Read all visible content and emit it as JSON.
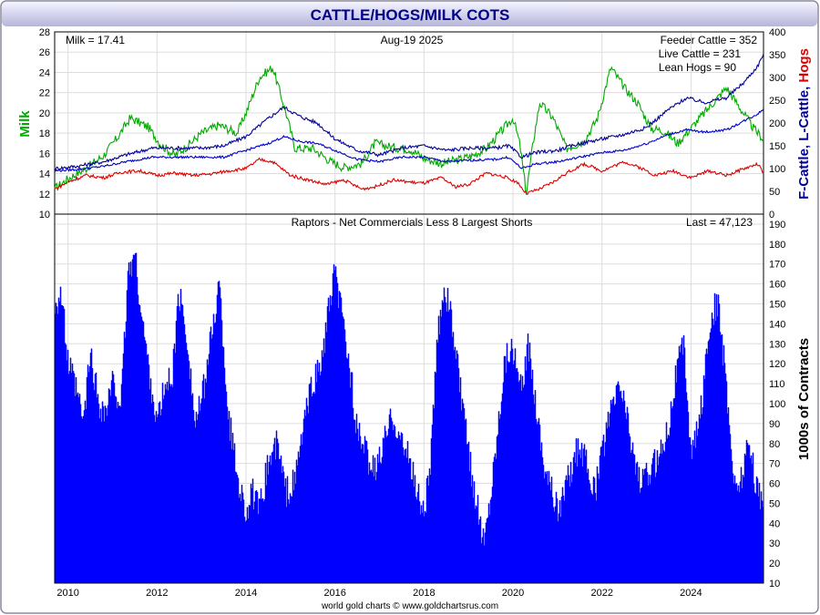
{
  "title": "CATTLE/HOGS/MILK COTS",
  "footer": "world gold charts © www.goldchartsrus.com",
  "colors": {
    "milk": "#00aa00",
    "feeder": "#000099",
    "live": "#0000cc",
    "hogs": "#dd0000",
    "bars": "#0000ff",
    "grid": "#dddddd",
    "frame": "#7a7a96"
  },
  "top_panel": {
    "left_axis_title": "Milk",
    "right_axis_title_parts": [
      "F-Cattle, ",
      "L-Cattle, ",
      "Hogs"
    ],
    "milk_label": "Milk = 17.41",
    "date_label": "Aug-19  2025",
    "feeder_label": "Feeder Cattle = 352",
    "live_label": "Live Cattle = 231",
    "hogs_label": "Lean Hogs = 90"
  },
  "bottom_panel": {
    "title": "Raptors - Net Commercials Less 8 Largest Shorts",
    "last_label": "Last = 47,123",
    "axis_title": "1000s of Contracts"
  },
  "chart_data": [
    {
      "type": "line",
      "x_range": [
        2009.7,
        2025.63
      ],
      "x_ticks": [
        "2010",
        "2012",
        "2014",
        "2016",
        "2018",
        "2020",
        "2022",
        "2024"
      ],
      "left_axis": {
        "label": "Milk",
        "ylim": [
          10,
          28
        ],
        "ticks": [
          "10",
          "12",
          "14",
          "16",
          "18",
          "20",
          "22",
          "24",
          "26",
          "28"
        ]
      },
      "right_axis": {
        "label": "F-Cattle, L-Cattle, Hogs",
        "ylim": [
          0,
          400
        ],
        "ticks": [
          "0",
          "50",
          "100",
          "150",
          "200",
          "250",
          "300",
          "350",
          "400"
        ]
      },
      "grid": true,
      "series": [
        {
          "name": "Milk",
          "axis": "left",
          "color": "#00aa00",
          "points": [
            [
              2009.7,
              12.5
            ],
            [
              2010.0,
              13.5
            ],
            [
              2010.4,
              14.5
            ],
            [
              2010.8,
              15.8
            ],
            [
              2011.1,
              17.5
            ],
            [
              2011.4,
              19.5
            ],
            [
              2011.8,
              18.6
            ],
            [
              2012.1,
              16.8
            ],
            [
              2012.4,
              15.8
            ],
            [
              2012.7,
              16.8
            ],
            [
              2013.0,
              18.0
            ],
            [
              2013.4,
              18.8
            ],
            [
              2013.8,
              18.0
            ],
            [
              2014.0,
              20.0
            ],
            [
              2014.3,
              23.5
            ],
            [
              2014.6,
              24.5
            ],
            [
              2014.9,
              20.0
            ],
            [
              2015.1,
              16.5
            ],
            [
              2015.5,
              16.5
            ],
            [
              2015.9,
              15.2
            ],
            [
              2016.2,
              14.6
            ],
            [
              2016.6,
              15.0
            ],
            [
              2016.9,
              17.0
            ],
            [
              2017.3,
              16.6
            ],
            [
              2017.7,
              16.4
            ],
            [
              2018.0,
              15.5
            ],
            [
              2018.4,
              15.0
            ],
            [
              2018.8,
              15.4
            ],
            [
              2019.1,
              15.8
            ],
            [
              2019.4,
              16.5
            ],
            [
              2019.8,
              18.5
            ],
            [
              2020.0,
              19.5
            ],
            [
              2020.15,
              17.0
            ],
            [
              2020.3,
              12.0
            ],
            [
              2020.45,
              17.0
            ],
            [
              2020.6,
              21.0
            ],
            [
              2020.9,
              19.5
            ],
            [
              2021.2,
              16.5
            ],
            [
              2021.6,
              17.2
            ],
            [
              2021.9,
              19.5
            ],
            [
              2022.2,
              24.5
            ],
            [
              2022.5,
              22.5
            ],
            [
              2022.8,
              21.0
            ],
            [
              2023.1,
              18.5
            ],
            [
              2023.4,
              18.2
            ],
            [
              2023.7,
              17.0
            ],
            [
              2024.0,
              18.5
            ],
            [
              2024.4,
              20.5
            ],
            [
              2024.8,
              22.5
            ],
            [
              2025.1,
              20.5
            ],
            [
              2025.4,
              18.5
            ],
            [
              2025.63,
              17.4
            ]
          ]
        },
        {
          "name": "Feeder Cattle",
          "axis": "right",
          "color": "#000099",
          "points": [
            [
              2009.7,
              100
            ],
            [
              2010.2,
              105
            ],
            [
              2010.8,
              115
            ],
            [
              2011.3,
              130
            ],
            [
              2011.9,
              145
            ],
            [
              2012.5,
              145
            ],
            [
              2013.0,
              145
            ],
            [
              2013.5,
              150
            ],
            [
              2014.0,
              170
            ],
            [
              2014.5,
              210
            ],
            [
              2014.85,
              235
            ],
            [
              2015.2,
              215
            ],
            [
              2015.6,
              200
            ],
            [
              2016.0,
              165
            ],
            [
              2016.5,
              140
            ],
            [
              2017.0,
              130
            ],
            [
              2017.5,
              145
            ],
            [
              2018.0,
              150
            ],
            [
              2018.5,
              140
            ],
            [
              2019.0,
              145
            ],
            [
              2019.6,
              145
            ],
            [
              2019.9,
              150
            ],
            [
              2020.2,
              125
            ],
            [
              2020.5,
              135
            ],
            [
              2021.0,
              140
            ],
            [
              2021.5,
              155
            ],
            [
              2022.0,
              165
            ],
            [
              2022.5,
              175
            ],
            [
              2023.0,
              190
            ],
            [
              2023.5,
              230
            ],
            [
              2023.9,
              255
            ],
            [
              2024.3,
              245
            ],
            [
              2024.8,
              255
            ],
            [
              2025.2,
              290
            ],
            [
              2025.5,
              325
            ],
            [
              2025.63,
              352
            ]
          ]
        },
        {
          "name": "Live Cattle",
          "axis": "right",
          "color": "#0000cc",
          "points": [
            [
              2009.7,
              95
            ],
            [
              2010.2,
              98
            ],
            [
              2010.8,
              105
            ],
            [
              2011.3,
              115
            ],
            [
              2011.9,
              125
            ],
            [
              2012.5,
              125
            ],
            [
              2013.0,
              125
            ],
            [
              2013.5,
              125
            ],
            [
              2014.0,
              140
            ],
            [
              2014.5,
              155
            ],
            [
              2014.85,
              170
            ],
            [
              2015.2,
              160
            ],
            [
              2015.6,
              155
            ],
            [
              2016.0,
              140
            ],
            [
              2016.5,
              120
            ],
            [
              2017.0,
              115
            ],
            [
              2017.5,
              125
            ],
            [
              2018.0,
              125
            ],
            [
              2018.5,
              115
            ],
            [
              2019.0,
              118
            ],
            [
              2019.6,
              120
            ],
            [
              2019.9,
              125
            ],
            [
              2020.2,
              100
            ],
            [
              2020.5,
              110
            ],
            [
              2021.0,
              115
            ],
            [
              2021.5,
              125
            ],
            [
              2022.0,
              135
            ],
            [
              2022.5,
              140
            ],
            [
              2023.0,
              155
            ],
            [
              2023.5,
              175
            ],
            [
              2023.9,
              185
            ],
            [
              2024.3,
              180
            ],
            [
              2024.8,
              185
            ],
            [
              2025.2,
              205
            ],
            [
              2025.5,
              220
            ],
            [
              2025.63,
              231
            ]
          ]
        },
        {
          "name": "Lean Hogs",
          "axis": "right",
          "color": "#dd0000",
          "points": [
            [
              2009.7,
              55
            ],
            [
              2010.0,
              70
            ],
            [
              2010.4,
              85
            ],
            [
              2010.8,
              80
            ],
            [
              2011.2,
              92
            ],
            [
              2011.6,
              95
            ],
            [
              2012.0,
              85
            ],
            [
              2012.4,
              90
            ],
            [
              2012.8,
              85
            ],
            [
              2013.2,
              88
            ],
            [
              2013.6,
              95
            ],
            [
              2014.0,
              100
            ],
            [
              2014.3,
              120
            ],
            [
              2014.6,
              115
            ],
            [
              2015.0,
              85
            ],
            [
              2015.4,
              75
            ],
            [
              2015.8,
              65
            ],
            [
              2016.2,
              75
            ],
            [
              2016.6,
              55
            ],
            [
              2016.9,
              60
            ],
            [
              2017.3,
              75
            ],
            [
              2017.7,
              70
            ],
            [
              2018.0,
              68
            ],
            [
              2018.4,
              80
            ],
            [
              2018.7,
              60
            ],
            [
              2019.0,
              65
            ],
            [
              2019.4,
              90
            ],
            [
              2019.8,
              82
            ],
            [
              2020.1,
              70
            ],
            [
              2020.3,
              45
            ],
            [
              2020.6,
              55
            ],
            [
              2020.9,
              70
            ],
            [
              2021.2,
              90
            ],
            [
              2021.6,
              110
            ],
            [
              2022.0,
              95
            ],
            [
              2022.5,
              115
            ],
            [
              2022.9,
              100
            ],
            [
              2023.2,
              85
            ],
            [
              2023.6,
              95
            ],
            [
              2024.0,
              80
            ],
            [
              2024.4,
              95
            ],
            [
              2024.8,
              85
            ],
            [
              2025.2,
              100
            ],
            [
              2025.5,
              110
            ],
            [
              2025.63,
              90
            ]
          ]
        }
      ]
    },
    {
      "type": "bar",
      "title": "Raptors - Net Commercials Less 8 Largest Shorts",
      "ylabel": "1000s of Contracts",
      "ylim": [
        10,
        195
      ],
      "y_ticks": [
        "10",
        "20",
        "30",
        "40",
        "50",
        "60",
        "70",
        "80",
        "90",
        "100",
        "110",
        "120",
        "130",
        "140",
        "150",
        "160",
        "170",
        "180",
        "190"
      ],
      "x_range": [
        2009.7,
        2025.63
      ],
      "x_ticks": [
        "2010",
        "2012",
        "2014",
        "2016",
        "2018",
        "2020",
        "2022",
        "2024"
      ],
      "last": 47.123,
      "points": [
        [
          2009.7,
          150
        ],
        [
          2009.85,
          155
        ],
        [
          2010.0,
          120
        ],
        [
          2010.2,
          105
        ],
        [
          2010.35,
          90
        ],
        [
          2010.5,
          125
        ],
        [
          2010.7,
          100
        ],
        [
          2010.85,
          95
        ],
        [
          2011.0,
          110
        ],
        [
          2011.2,
          100
        ],
        [
          2011.35,
          165
        ],
        [
          2011.5,
          175
        ],
        [
          2011.65,
          145
        ],
        [
          2011.8,
          120
        ],
        [
          2012.0,
          90
        ],
        [
          2012.15,
          105
        ],
        [
          2012.35,
          115
        ],
        [
          2012.5,
          155
        ],
        [
          2012.7,
          130
        ],
        [
          2012.85,
          90
        ],
        [
          2013.0,
          100
        ],
        [
          2013.2,
          130
        ],
        [
          2013.4,
          160
        ],
        [
          2013.6,
          95
        ],
        [
          2013.8,
          65
        ],
        [
          2014.0,
          45
        ],
        [
          2014.15,
          55
        ],
        [
          2014.3,
          45
        ],
        [
          2014.5,
          70
        ],
        [
          2014.7,
          80
        ],
        [
          2014.9,
          55
        ],
        [
          2015.1,
          60
        ],
        [
          2015.3,
          90
        ],
        [
          2015.5,
          110
        ],
        [
          2015.7,
          120
        ],
        [
          2015.85,
          145
        ],
        [
          2016.0,
          165
        ],
        [
          2016.15,
          145
        ],
        [
          2016.35,
          115
        ],
        [
          2016.5,
          85
        ],
        [
          2016.7,
          75
        ],
        [
          2016.9,
          65
        ],
        [
          2017.1,
          80
        ],
        [
          2017.3,
          95
        ],
        [
          2017.5,
          80
        ],
        [
          2017.7,
          70
        ],
        [
          2017.85,
          55
        ],
        [
          2018.0,
          45
        ],
        [
          2018.15,
          70
        ],
        [
          2018.3,
          130
        ],
        [
          2018.45,
          160
        ],
        [
          2018.6,
          145
        ],
        [
          2018.8,
          110
        ],
        [
          2019.0,
          75
        ],
        [
          2019.15,
          55
        ],
        [
          2019.35,
          30
        ],
        [
          2019.5,
          55
        ],
        [
          2019.65,
          85
        ],
        [
          2019.8,
          120
        ],
        [
          2019.95,
          130
        ],
        [
          2020.1,
          115
        ],
        [
          2020.2,
          105
        ],
        [
          2020.35,
          130
        ],
        [
          2020.55,
          95
        ],
        [
          2020.7,
          70
        ],
        [
          2020.9,
          55
        ],
        [
          2021.0,
          45
        ],
        [
          2021.15,
          55
        ],
        [
          2021.35,
          70
        ],
        [
          2021.5,
          80
        ],
        [
          2021.7,
          65
        ],
        [
          2021.85,
          55
        ],
        [
          2022.0,
          75
        ],
        [
          2022.2,
          95
        ],
        [
          2022.4,
          110
        ],
        [
          2022.55,
          95
        ],
        [
          2022.75,
          70
        ],
        [
          2022.9,
          60
        ],
        [
          2023.1,
          65
        ],
        [
          2023.3,
          75
        ],
        [
          2023.5,
          90
        ],
        [
          2023.7,
          120
        ],
        [
          2023.85,
          130
        ],
        [
          2024.0,
          75
        ],
        [
          2024.15,
          85
        ],
        [
          2024.3,
          110
        ],
        [
          2024.45,
          145
        ],
        [
          2024.6,
          150
        ],
        [
          2024.75,
          120
        ],
        [
          2024.9,
          80
        ],
        [
          2025.0,
          55
        ],
        [
          2025.15,
          65
        ],
        [
          2025.3,
          80
        ],
        [
          2025.45,
          60
        ],
        [
          2025.55,
          55
        ],
        [
          2025.63,
          47
        ]
      ]
    }
  ]
}
